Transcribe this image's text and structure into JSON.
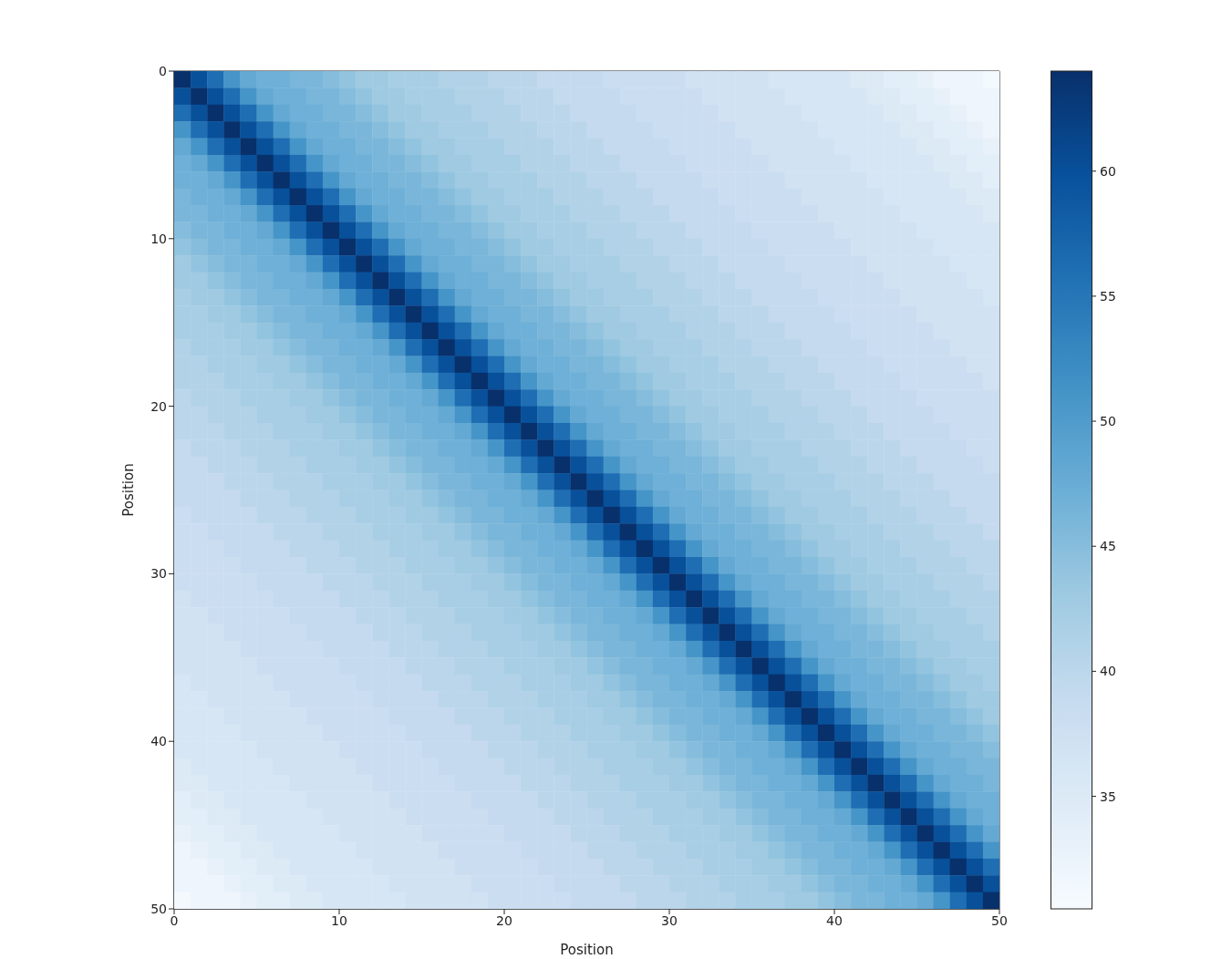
{
  "chart_data": {
    "type": "heatmap",
    "xlabel": "Position",
    "ylabel": "Position",
    "xlim": [
      0,
      50
    ],
    "xticks": [
      0,
      10,
      20,
      30,
      40,
      50
    ],
    "ylim": [
      50,
      0
    ],
    "yticks": [
      0,
      10,
      20,
      30,
      40,
      50
    ],
    "clim": [
      30.5,
      64
    ],
    "cticks": [
      35,
      40,
      45,
      50,
      55,
      60
    ],
    "cells": [
      [
        64,
        60,
        56,
        51,
        48,
        47,
        47,
        46,
        46,
        45,
        44,
        43,
        43,
        42,
        42,
        42,
        41,
        41,
        41,
        40,
        40,
        40,
        39,
        39,
        39,
        39,
        38,
        38,
        38,
        38,
        38,
        37,
        37,
        37,
        37,
        37,
        36,
        36,
        36,
        36,
        36,
        35,
        35,
        34,
        34,
        33,
        32,
        32,
        32,
        31
      ],
      [
        60,
        64,
        60,
        56,
        51,
        48,
        47,
        47,
        46,
        46,
        45,
        44,
        43,
        43,
        42,
        42,
        42,
        41,
        41,
        41,
        40,
        40,
        40,
        39,
        39,
        39,
        39,
        38,
        38,
        38,
        38,
        38,
        37,
        37,
        37,
        37,
        37,
        36,
        36,
        36,
        36,
        36,
        35,
        35,
        34,
        34,
        33,
        32,
        32,
        32
      ],
      [
        56,
        60,
        64,
        60,
        56,
        51,
        48,
        47,
        47,
        46,
        46,
        45,
        44,
        43,
        43,
        42,
        42,
        42,
        41,
        41,
        41,
        40,
        40,
        40,
        39,
        39,
        39,
        39,
        38,
        38,
        38,
        38,
        38,
        37,
        37,
        37,
        37,
        37,
        36,
        36,
        36,
        36,
        36,
        35,
        35,
        34,
        34,
        33,
        32,
        32
      ],
      [
        51,
        56,
        60,
        64,
        60,
        56,
        51,
        48,
        47,
        47,
        46,
        46,
        45,
        44,
        43,
        43,
        42,
        42,
        42,
        41,
        41,
        41,
        40,
        40,
        40,
        39,
        39,
        39,
        39,
        38,
        38,
        38,
        38,
        38,
        37,
        37,
        37,
        37,
        37,
        36,
        36,
        36,
        36,
        36,
        35,
        35,
        34,
        34,
        33,
        32
      ],
      [
        48,
        51,
        56,
        60,
        64,
        60,
        56,
        51,
        48,
        47,
        47,
        46,
        46,
        45,
        44,
        43,
        43,
        42,
        42,
        42,
        41,
        41,
        41,
        40,
        40,
        40,
        39,
        39,
        39,
        39,
        38,
        38,
        38,
        38,
        38,
        37,
        37,
        37,
        37,
        37,
        36,
        36,
        36,
        36,
        36,
        35,
        35,
        34,
        34,
        33
      ],
      [
        47,
        48,
        51,
        56,
        60,
        64,
        60,
        56,
        51,
        48,
        47,
        47,
        46,
        46,
        45,
        44,
        43,
        43,
        42,
        42,
        42,
        41,
        41,
        41,
        40,
        40,
        40,
        39,
        39,
        39,
        39,
        38,
        38,
        38,
        38,
        38,
        37,
        37,
        37,
        37,
        37,
        36,
        36,
        36,
        36,
        36,
        35,
        35,
        34,
        34
      ],
      [
        47,
        47,
        48,
        51,
        56,
        60,
        64,
        60,
        56,
        51,
        48,
        47,
        47,
        46,
        46,
        45,
        44,
        43,
        43,
        42,
        42,
        42,
        41,
        41,
        41,
        40,
        40,
        40,
        39,
        39,
        39,
        39,
        38,
        38,
        38,
        38,
        38,
        37,
        37,
        37,
        37,
        37,
        36,
        36,
        36,
        36,
        36,
        35,
        35,
        34
      ],
      [
        46,
        47,
        47,
        48,
        51,
        56,
        60,
        64,
        60,
        56,
        51,
        48,
        47,
        47,
        46,
        46,
        45,
        44,
        43,
        43,
        42,
        42,
        42,
        41,
        41,
        41,
        40,
        40,
        40,
        39,
        39,
        39,
        39,
        38,
        38,
        38,
        38,
        38,
        37,
        37,
        37,
        37,
        37,
        36,
        36,
        36,
        36,
        36,
        35,
        35
      ],
      [
        46,
        46,
        47,
        47,
        48,
        51,
        56,
        60,
        64,
        60,
        56,
        51,
        48,
        47,
        47,
        46,
        46,
        45,
        44,
        43,
        43,
        42,
        42,
        42,
        41,
        41,
        41,
        40,
        40,
        40,
        39,
        39,
        39,
        39,
        38,
        38,
        38,
        38,
        38,
        37,
        37,
        37,
        37,
        37,
        36,
        36,
        36,
        36,
        36,
        35
      ],
      [
        45,
        46,
        46,
        47,
        47,
        48,
        51,
        56,
        60,
        64,
        60,
        56,
        51,
        48,
        47,
        47,
        46,
        46,
        45,
        44,
        43,
        43,
        42,
        42,
        42,
        41,
        41,
        41,
        40,
        40,
        40,
        39,
        39,
        39,
        39,
        38,
        38,
        38,
        38,
        38,
        37,
        37,
        37,
        37,
        37,
        36,
        36,
        36,
        36,
        36
      ],
      [
        44,
        45,
        46,
        46,
        47,
        47,
        48,
        51,
        56,
        60,
        64,
        60,
        56,
        51,
        48,
        47,
        47,
        46,
        46,
        45,
        44,
        43,
        43,
        42,
        42,
        42,
        41,
        41,
        41,
        40,
        40,
        40,
        39,
        39,
        39,
        39,
        38,
        38,
        38,
        38,
        38,
        37,
        37,
        37,
        37,
        37,
        36,
        36,
        36,
        36
      ],
      [
        43,
        44,
        45,
        46,
        46,
        47,
        47,
        48,
        51,
        56,
        60,
        64,
        60,
        56,
        51,
        48,
        47,
        47,
        46,
        46,
        45,
        44,
        43,
        43,
        42,
        42,
        42,
        41,
        41,
        41,
        40,
        40,
        40,
        39,
        39,
        39,
        39,
        38,
        38,
        38,
        38,
        38,
        37,
        37,
        37,
        37,
        37,
        36,
        36,
        36
      ],
      [
        43,
        43,
        44,
        45,
        46,
        46,
        47,
        47,
        48,
        51,
        56,
        60,
        64,
        60,
        56,
        51,
        48,
        47,
        47,
        46,
        46,
        45,
        44,
        43,
        43,
        42,
        42,
        42,
        41,
        41,
        41,
        40,
        40,
        40,
        39,
        39,
        39,
        39,
        38,
        38,
        38,
        38,
        38,
        37,
        37,
        37,
        37,
        37,
        36,
        36
      ],
      [
        42,
        43,
        43,
        44,
        45,
        46,
        46,
        47,
        47,
        48,
        51,
        56,
        60,
        64,
        60,
        56,
        51,
        48,
        47,
        47,
        46,
        46,
        45,
        44,
        43,
        43,
        42,
        42,
        42,
        41,
        41,
        41,
        40,
        40,
        40,
        39,
        39,
        39,
        39,
        38,
        38,
        38,
        38,
        38,
        37,
        37,
        37,
        37,
        37,
        36
      ],
      [
        42,
        42,
        43,
        43,
        44,
        45,
        46,
        46,
        47,
        47,
        48,
        51,
        56,
        60,
        64,
        60,
        56,
        51,
        48,
        47,
        47,
        46,
        46,
        45,
        44,
        43,
        43,
        42,
        42,
        42,
        41,
        41,
        41,
        40,
        40,
        40,
        39,
        39,
        39,
        39,
        38,
        38,
        38,
        38,
        38,
        37,
        37,
        37,
        37,
        37
      ],
      [
        42,
        42,
        42,
        43,
        43,
        44,
        45,
        46,
        46,
        47,
        47,
        48,
        51,
        56,
        60,
        64,
        60,
        56,
        51,
        48,
        47,
        47,
        46,
        46,
        45,
        44,
        43,
        43,
        42,
        42,
        42,
        41,
        41,
        41,
        40,
        40,
        40,
        39,
        39,
        39,
        39,
        38,
        38,
        38,
        38,
        38,
        37,
        37,
        37,
        37
      ],
      [
        41,
        42,
        42,
        42,
        43,
        43,
        44,
        45,
        46,
        46,
        47,
        47,
        48,
        51,
        56,
        60,
        64,
        60,
        56,
        51,
        48,
        47,
        47,
        46,
        46,
        45,
        44,
        43,
        43,
        42,
        42,
        42,
        41,
        41,
        41,
        40,
        40,
        40,
        39,
        39,
        39,
        39,
        38,
        38,
        38,
        38,
        38,
        37,
        37,
        37
      ],
      [
        41,
        41,
        42,
        42,
        42,
        43,
        43,
        44,
        45,
        46,
        46,
        47,
        47,
        48,
        51,
        56,
        60,
        64,
        60,
        56,
        51,
        48,
        47,
        47,
        46,
        46,
        45,
        44,
        43,
        43,
        42,
        42,
        42,
        41,
        41,
        41,
        40,
        40,
        40,
        39,
        39,
        39,
        39,
        38,
        38,
        38,
        38,
        38,
        37,
        37
      ],
      [
        41,
        41,
        41,
        42,
        42,
        42,
        43,
        43,
        44,
        45,
        46,
        46,
        47,
        47,
        48,
        51,
        56,
        60,
        64,
        60,
        56,
        51,
        48,
        47,
        47,
        46,
        46,
        45,
        44,
        43,
        43,
        42,
        42,
        42,
        41,
        41,
        41,
        40,
        40,
        40,
        39,
        39,
        39,
        39,
        38,
        38,
        38,
        38,
        38,
        37
      ],
      [
        40,
        41,
        41,
        41,
        42,
        42,
        42,
        43,
        43,
        44,
        45,
        46,
        46,
        47,
        47,
        48,
        51,
        56,
        60,
        64,
        60,
        56,
        51,
        48,
        47,
        47,
        46,
        46,
        45,
        44,
        43,
        43,
        42,
        42,
        42,
        41,
        41,
        41,
        40,
        40,
        40,
        39,
        39,
        39,
        39,
        38,
        38,
        38,
        38,
        38
      ],
      [
        40,
        40,
        41,
        41,
        41,
        42,
        42,
        42,
        43,
        43,
        44,
        45,
        46,
        46,
        47,
        47,
        48,
        51,
        56,
        60,
        64,
        60,
        56,
        51,
        48,
        47,
        47,
        46,
        46,
        45,
        44,
        43,
        43,
        42,
        42,
        42,
        41,
        41,
        41,
        40,
        40,
        40,
        39,
        39,
        39,
        39,
        38,
        38,
        38,
        38
      ],
      [
        40,
        40,
        40,
        41,
        41,
        41,
        42,
        42,
        42,
        43,
        43,
        44,
        45,
        46,
        46,
        47,
        47,
        48,
        51,
        56,
        60,
        64,
        60,
        56,
        51,
        48,
        47,
        47,
        46,
        46,
        45,
        44,
        43,
        43,
        42,
        42,
        42,
        41,
        41,
        41,
        40,
        40,
        40,
        39,
        39,
        39,
        39,
        38,
        38,
        38
      ],
      [
        39,
        40,
        40,
        40,
        41,
        41,
        41,
        42,
        42,
        42,
        43,
        43,
        44,
        45,
        46,
        46,
        47,
        47,
        48,
        51,
        56,
        60,
        64,
        60,
        56,
        51,
        48,
        47,
        47,
        46,
        46,
        45,
        44,
        43,
        43,
        42,
        42,
        42,
        41,
        41,
        41,
        40,
        40,
        40,
        39,
        39,
        39,
        39,
        38,
        38
      ],
      [
        39,
        39,
        40,
        40,
        40,
        41,
        41,
        41,
        42,
        42,
        42,
        43,
        43,
        44,
        45,
        46,
        46,
        47,
        47,
        48,
        51,
        56,
        60,
        64,
        60,
        56,
        51,
        48,
        47,
        47,
        46,
        46,
        45,
        44,
        43,
        43,
        42,
        42,
        42,
        41,
        41,
        41,
        40,
        40,
        40,
        39,
        39,
        39,
        39,
        38
      ],
      [
        39,
        39,
        39,
        40,
        40,
        40,
        41,
        41,
        41,
        42,
        42,
        42,
        43,
        43,
        44,
        45,
        46,
        46,
        47,
        47,
        48,
        51,
        56,
        60,
        64,
        60,
        56,
        51,
        48,
        47,
        47,
        46,
        46,
        45,
        44,
        43,
        43,
        42,
        42,
        42,
        41,
        41,
        41,
        40,
        40,
        40,
        39,
        39,
        39,
        39
      ],
      [
        39,
        39,
        39,
        39,
        40,
        40,
        40,
        41,
        41,
        41,
        42,
        42,
        42,
        43,
        43,
        44,
        45,
        46,
        46,
        47,
        47,
        48,
        51,
        56,
        60,
        64,
        60,
        56,
        51,
        48,
        47,
        47,
        46,
        46,
        45,
        44,
        43,
        43,
        42,
        42,
        42,
        41,
        41,
        41,
        40,
        40,
        40,
        39,
        39,
        39
      ],
      [
        38,
        39,
        39,
        39,
        39,
        40,
        40,
        40,
        41,
        41,
        41,
        42,
        42,
        42,
        43,
        43,
        44,
        45,
        46,
        46,
        47,
        47,
        48,
        51,
        56,
        60,
        64,
        60,
        56,
        51,
        48,
        47,
        47,
        46,
        46,
        45,
        44,
        43,
        43,
        42,
        42,
        42,
        41,
        41,
        41,
        40,
        40,
        40,
        39,
        39
      ],
      [
        38,
        38,
        39,
        39,
        39,
        39,
        40,
        40,
        40,
        41,
        41,
        41,
        42,
        42,
        42,
        43,
        43,
        44,
        45,
        46,
        46,
        47,
        47,
        48,
        51,
        56,
        60,
        64,
        60,
        56,
        51,
        48,
        47,
        47,
        46,
        46,
        45,
        44,
        43,
        43,
        42,
        42,
        42,
        41,
        41,
        41,
        40,
        40,
        40,
        39
      ],
      [
        38,
        38,
        38,
        39,
        39,
        39,
        39,
        40,
        40,
        40,
        41,
        41,
        41,
        42,
        42,
        42,
        43,
        43,
        44,
        45,
        46,
        46,
        47,
        47,
        48,
        51,
        56,
        60,
        64,
        60,
        56,
        51,
        48,
        47,
        47,
        46,
        46,
        45,
        44,
        43,
        43,
        42,
        42,
        42,
        41,
        41,
        41,
        40,
        40,
        40
      ],
      [
        38,
        38,
        38,
        38,
        39,
        39,
        39,
        39,
        40,
        40,
        40,
        41,
        41,
        41,
        42,
        42,
        42,
        43,
        43,
        44,
        45,
        46,
        46,
        47,
        47,
        48,
        51,
        56,
        60,
        64,
        60,
        56,
        51,
        48,
        47,
        47,
        46,
        46,
        45,
        44,
        43,
        43,
        42,
        42,
        42,
        41,
        41,
        41,
        40,
        40
      ],
      [
        38,
        38,
        38,
        38,
        38,
        39,
        39,
        39,
        39,
        40,
        40,
        40,
        41,
        41,
        41,
        42,
        42,
        42,
        43,
        43,
        44,
        45,
        46,
        46,
        47,
        47,
        48,
        51,
        56,
        60,
        64,
        60,
        56,
        51,
        48,
        47,
        47,
        46,
        46,
        45,
        44,
        43,
        43,
        42,
        42,
        42,
        41,
        41,
        41,
        40
      ],
      [
        37,
        38,
        38,
        38,
        38,
        38,
        39,
        39,
        39,
        39,
        40,
        40,
        40,
        41,
        41,
        41,
        42,
        42,
        42,
        43,
        43,
        44,
        45,
        46,
        46,
        47,
        47,
        48,
        51,
        56,
        60,
        64,
        60,
        56,
        51,
        48,
        47,
        47,
        46,
        46,
        45,
        44,
        43,
        43,
        42,
        42,
        42,
        41,
        41,
        41
      ],
      [
        37,
        37,
        38,
        38,
        38,
        38,
        38,
        39,
        39,
        39,
        39,
        40,
        40,
        40,
        41,
        41,
        41,
        42,
        42,
        42,
        43,
        43,
        44,
        45,
        46,
        46,
        47,
        47,
        48,
        51,
        56,
        60,
        64,
        60,
        56,
        51,
        48,
        47,
        47,
        46,
        46,
        45,
        44,
        43,
        43,
        42,
        42,
        42,
        41,
        41
      ],
      [
        37,
        37,
        37,
        38,
        38,
        38,
        38,
        38,
        39,
        39,
        39,
        39,
        40,
        40,
        40,
        41,
        41,
        41,
        42,
        42,
        42,
        43,
        43,
        44,
        45,
        46,
        46,
        47,
        47,
        48,
        51,
        56,
        60,
        64,
        60,
        56,
        51,
        48,
        47,
        47,
        46,
        46,
        45,
        44,
        43,
        43,
        42,
        42,
        42,
        41
      ],
      [
        37,
        37,
        37,
        37,
        38,
        38,
        38,
        38,
        38,
        39,
        39,
        39,
        39,
        40,
        40,
        40,
        41,
        41,
        41,
        42,
        42,
        42,
        43,
        43,
        44,
        45,
        46,
        46,
        47,
        47,
        48,
        51,
        56,
        60,
        64,
        60,
        56,
        51,
        48,
        47,
        47,
        46,
        46,
        45,
        44,
        43,
        43,
        42,
        42,
        42
      ],
      [
        37,
        37,
        37,
        37,
        37,
        38,
        38,
        38,
        38,
        38,
        39,
        39,
        39,
        39,
        40,
        40,
        40,
        41,
        41,
        41,
        42,
        42,
        42,
        43,
        43,
        44,
        45,
        46,
        46,
        47,
        47,
        48,
        51,
        56,
        60,
        64,
        60,
        56,
        51,
        48,
        47,
        47,
        46,
        46,
        45,
        44,
        43,
        43,
        42,
        42
      ],
      [
        36,
        37,
        37,
        37,
        37,
        37,
        38,
        38,
        38,
        38,
        38,
        39,
        39,
        39,
        39,
        40,
        40,
        40,
        41,
        41,
        41,
        42,
        42,
        42,
        43,
        43,
        44,
        45,
        46,
        46,
        47,
        47,
        48,
        51,
        56,
        60,
        64,
        60,
        56,
        51,
        48,
        47,
        47,
        46,
        46,
        45,
        44,
        43,
        43,
        42
      ],
      [
        36,
        36,
        37,
        37,
        37,
        37,
        37,
        38,
        38,
        38,
        38,
        38,
        39,
        39,
        39,
        39,
        40,
        40,
        40,
        41,
        41,
        41,
        42,
        42,
        42,
        43,
        43,
        44,
        45,
        46,
        46,
        47,
        47,
        48,
        51,
        56,
        60,
        64,
        60,
        56,
        51,
        48,
        47,
        47,
        46,
        46,
        45,
        44,
        43,
        43
      ],
      [
        36,
        36,
        36,
        37,
        37,
        37,
        37,
        37,
        38,
        38,
        38,
        38,
        38,
        39,
        39,
        39,
        39,
        40,
        40,
        40,
        41,
        41,
        41,
        42,
        42,
        42,
        43,
        43,
        44,
        45,
        46,
        46,
        47,
        47,
        48,
        51,
        56,
        60,
        64,
        60,
        56,
        51,
        48,
        47,
        47,
        46,
        46,
        45,
        44,
        43
      ],
      [
        36,
        36,
        36,
        36,
        37,
        37,
        37,
        37,
        37,
        38,
        38,
        38,
        38,
        38,
        39,
        39,
        39,
        39,
        40,
        40,
        40,
        41,
        41,
        41,
        42,
        42,
        42,
        43,
        43,
        44,
        45,
        46,
        46,
        47,
        47,
        48,
        51,
        56,
        60,
        64,
        60,
        56,
        51,
        48,
        47,
        47,
        46,
        46,
        45,
        44
      ],
      [
        36,
        36,
        36,
        36,
        36,
        37,
        37,
        37,
        37,
        37,
        38,
        38,
        38,
        38,
        38,
        39,
        39,
        39,
        39,
        40,
        40,
        40,
        41,
        41,
        41,
        42,
        42,
        42,
        43,
        43,
        44,
        45,
        46,
        46,
        47,
        47,
        48,
        51,
        56,
        60,
        64,
        60,
        56,
        51,
        48,
        47,
        47,
        46,
        46,
        45
      ],
      [
        35,
        36,
        36,
        36,
        36,
        36,
        37,
        37,
        37,
        37,
        37,
        38,
        38,
        38,
        38,
        38,
        39,
        39,
        39,
        39,
        40,
        40,
        40,
        41,
        41,
        41,
        42,
        42,
        42,
        43,
        43,
        44,
        45,
        46,
        46,
        47,
        47,
        48,
        51,
        56,
        60,
        64,
        60,
        56,
        51,
        48,
        47,
        47,
        46,
        46
      ],
      [
        35,
        35,
        36,
        36,
        36,
        36,
        36,
        37,
        37,
        37,
        37,
        37,
        38,
        38,
        38,
        38,
        38,
        39,
        39,
        39,
        39,
        40,
        40,
        40,
        41,
        41,
        41,
        42,
        42,
        42,
        43,
        43,
        44,
        45,
        46,
        46,
        47,
        47,
        48,
        51,
        56,
        60,
        64,
        60,
        56,
        51,
        48,
        47,
        47,
        46
      ],
      [
        34,
        35,
        35,
        36,
        36,
        36,
        36,
        36,
        37,
        37,
        37,
        37,
        37,
        38,
        38,
        38,
        38,
        38,
        39,
        39,
        39,
        39,
        40,
        40,
        40,
        41,
        41,
        41,
        42,
        42,
        42,
        43,
        43,
        44,
        45,
        46,
        46,
        47,
        47,
        48,
        51,
        56,
        60,
        64,
        60,
        56,
        51,
        48,
        47,
        47
      ],
      [
        34,
        34,
        35,
        35,
        36,
        36,
        36,
        36,
        36,
        37,
        37,
        37,
        37,
        37,
        38,
        38,
        38,
        38,
        38,
        39,
        39,
        39,
        39,
        40,
        40,
        40,
        41,
        41,
        41,
        42,
        42,
        42,
        43,
        43,
        44,
        45,
        46,
        46,
        47,
        47,
        48,
        51,
        56,
        60,
        64,
        60,
        56,
        51,
        48,
        47
      ],
      [
        33,
        34,
        34,
        35,
        35,
        36,
        36,
        36,
        36,
        36,
        37,
        37,
        37,
        37,
        37,
        38,
        38,
        38,
        38,
        38,
        39,
        39,
        39,
        39,
        40,
        40,
        40,
        41,
        41,
        41,
        42,
        42,
        42,
        43,
        43,
        44,
        45,
        46,
        46,
        47,
        47,
        48,
        51,
        56,
        60,
        64,
        60,
        56,
        51,
        48
      ],
      [
        32,
        33,
        34,
        34,
        35,
        35,
        36,
        36,
        36,
        36,
        36,
        37,
        37,
        37,
        37,
        37,
        38,
        38,
        38,
        38,
        38,
        39,
        39,
        39,
        39,
        40,
        40,
        40,
        41,
        41,
        41,
        42,
        42,
        42,
        43,
        43,
        44,
        45,
        46,
        46,
        47,
        47,
        48,
        51,
        56,
        60,
        64,
        60,
        56,
        51
      ],
      [
        32,
        32,
        33,
        34,
        34,
        35,
        35,
        36,
        36,
        36,
        36,
        36,
        37,
        37,
        37,
        37,
        37,
        38,
        38,
        38,
        38,
        38,
        39,
        39,
        39,
        39,
        40,
        40,
        40,
        41,
        41,
        41,
        42,
        42,
        42,
        43,
        43,
        44,
        45,
        46,
        46,
        47,
        47,
        48,
        51,
        56,
        60,
        64,
        60,
        56
      ],
      [
        32,
        32,
        32,
        33,
        34,
        34,
        35,
        35,
        36,
        36,
        36,
        36,
        36,
        37,
        37,
        37,
        37,
        37,
        38,
        38,
        38,
        38,
        38,
        39,
        39,
        39,
        39,
        40,
        40,
        40,
        41,
        41,
        41,
        42,
        42,
        42,
        43,
        43,
        44,
        45,
        46,
        46,
        47,
        47,
        48,
        51,
        56,
        60,
        64,
        60
      ],
      [
        31,
        32,
        32,
        32,
        33,
        34,
        34,
        35,
        35,
        36,
        36,
        36,
        36,
        36,
        37,
        37,
        37,
        37,
        37,
        38,
        38,
        38,
        38,
        38,
        39,
        39,
        39,
        39,
        40,
        40,
        40,
        41,
        41,
        41,
        42,
        42,
        42,
        43,
        43,
        44,
        45,
        46,
        46,
        47,
        47,
        48,
        51,
        56,
        60,
        64
      ]
    ]
  }
}
